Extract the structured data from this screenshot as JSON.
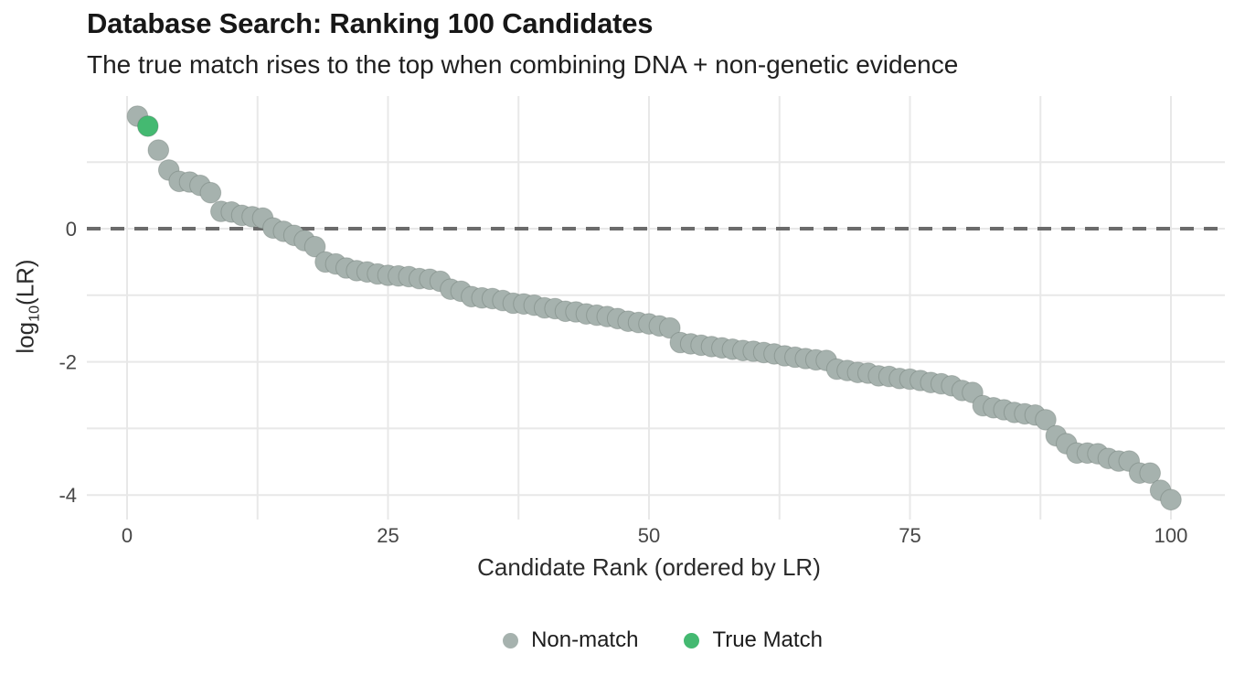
{
  "chart_data": {
    "type": "scatter",
    "title": "Database Search: Ranking 100 Candidates",
    "subtitle": "The true match rises to the top when combining DNA + non-genetic evidence",
    "xlabel": "Candidate Rank (ordered by LR)",
    "ylabel": "log10(LR)",
    "ylabel_parts": {
      "prefix": "log",
      "subscript": "10",
      "suffix": "(LR)"
    },
    "xlim": [
      -3.9,
      105.4
    ],
    "ylim": [
      -4.37,
      1.99
    ],
    "x_ticks": [
      0,
      25,
      50,
      75,
      100
    ],
    "y_ticks": [
      0,
      -2,
      -4
    ],
    "x_grid_values": [
      0,
      12.5,
      25,
      37.5,
      50,
      62.5,
      75,
      87.5,
      100
    ],
    "y_grid_values": [
      1,
      0,
      -1,
      -2,
      -3,
      -4
    ],
    "grid": true,
    "reference_line": {
      "y": 0,
      "style": "dashed",
      "color": "#6b6b6b"
    },
    "colors": {
      "grid": "#e8e8e8",
      "tick_label": "#474747",
      "non_match": "#a6b2ae",
      "true_match": "#44b971"
    },
    "legend": {
      "position": "bottom-center",
      "entries": [
        {
          "label": "Non-match",
          "color": "#a6b2ae"
        },
        {
          "label": "True Match",
          "color": "#44b971"
        }
      ]
    },
    "series": [
      {
        "name": "Non-match",
        "color": "#a6b2ae",
        "point_name": "non-match-point",
        "x": [
          1,
          3,
          4,
          5,
          6,
          7,
          8,
          9,
          10,
          11,
          12,
          13,
          14,
          15,
          16,
          17,
          18,
          19,
          20,
          21,
          22,
          23,
          24,
          25,
          26,
          27,
          28,
          29,
          30,
          31,
          32,
          33,
          34,
          35,
          36,
          37,
          38,
          39,
          40,
          41,
          42,
          43,
          44,
          45,
          46,
          47,
          48,
          49,
          50,
          51,
          52,
          53,
          54,
          55,
          56,
          57,
          58,
          59,
          60,
          61,
          62,
          63,
          64,
          65,
          66,
          67,
          68,
          69,
          70,
          71,
          72,
          73,
          74,
          75,
          76,
          77,
          78,
          79,
          80,
          81,
          82,
          83,
          84,
          85,
          86,
          87,
          88,
          89,
          90,
          91,
          92,
          93,
          94,
          95,
          96,
          97,
          98,
          99,
          100
        ],
        "y": [
          1.69,
          1.18,
          0.88,
          0.71,
          0.7,
          0.65,
          0.54,
          0.26,
          0.25,
          0.2,
          0.18,
          0.16,
          0.01,
          -0.04,
          -0.1,
          -0.18,
          -0.27,
          -0.5,
          -0.53,
          -0.59,
          -0.63,
          -0.65,
          -0.68,
          -0.7,
          -0.71,
          -0.72,
          -0.75,
          -0.76,
          -0.79,
          -0.91,
          -0.94,
          -1.02,
          -1.04,
          -1.05,
          -1.08,
          -1.12,
          -1.13,
          -1.15,
          -1.19,
          -1.2,
          -1.24,
          -1.25,
          -1.28,
          -1.3,
          -1.32,
          -1.35,
          -1.39,
          -1.41,
          -1.43,
          -1.46,
          -1.49,
          -1.71,
          -1.73,
          -1.75,
          -1.77,
          -1.79,
          -1.81,
          -1.83,
          -1.84,
          -1.86,
          -1.88,
          -1.91,
          -1.93,
          -1.95,
          -1.97,
          -1.98,
          -2.11,
          -2.13,
          -2.16,
          -2.17,
          -2.21,
          -2.22,
          -2.25,
          -2.26,
          -2.28,
          -2.31,
          -2.33,
          -2.36,
          -2.43,
          -2.46,
          -2.66,
          -2.69,
          -2.72,
          -2.76,
          -2.78,
          -2.8,
          -2.87,
          -3.11,
          -3.23,
          -3.37,
          -3.37,
          -3.38,
          -3.45,
          -3.49,
          -3.49,
          -3.67,
          -3.67,
          -3.93,
          -4.07
        ]
      },
      {
        "name": "True Match",
        "color": "#44b971",
        "point_name": "true-match-point",
        "x": [
          2
        ],
        "y": [
          1.54
        ]
      }
    ]
  }
}
